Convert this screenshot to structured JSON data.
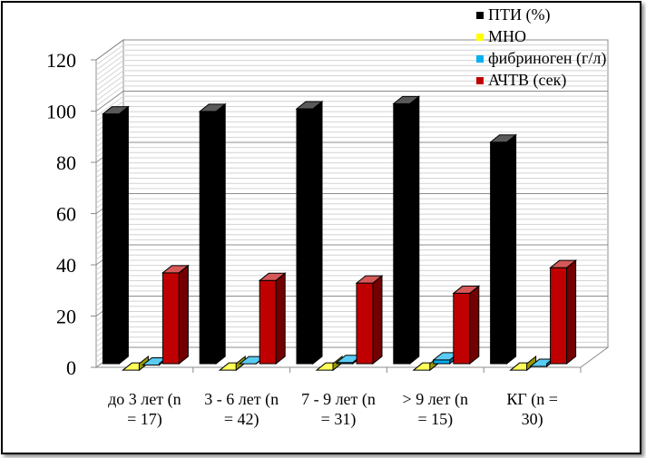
{
  "chart_data": {
    "type": "bar",
    "title": "",
    "xlabel": "",
    "ylabel": "",
    "ylim": [
      0,
      120
    ],
    "yticks": [
      "0",
      "20",
      "40",
      "60",
      "80",
      "100",
      "120"
    ],
    "grid": true,
    "legend_position": "top-right",
    "categories": [
      [
        "до 3 лет (n",
        "= 17)"
      ],
      [
        "3 - 6 лет (n",
        "= 42)"
      ],
      [
        "7 - 9 лет (n",
        "= 31)"
      ],
      [
        "> 9 лет (n",
        "= 15)"
      ],
      [
        "КГ (n =",
        "30)"
      ]
    ],
    "series": [
      {
        "name": "ПТИ (%)",
        "color": "#000000",
        "values": [
          101,
          102,
          103,
          105,
          90
        ]
      },
      {
        "name": "МНО",
        "color": "#ffff00",
        "values": [
          1,
          1,
          1,
          1,
          1
        ]
      },
      {
        "name": "фибриноген (г/л)",
        "color": "#00b0f0",
        "values": [
          3,
          3.5,
          4,
          5,
          2.5
        ]
      },
      {
        "name": "АЧТВ (сек)",
        "color": "#c00000",
        "values": [
          39,
          36,
          35,
          31,
          41
        ]
      }
    ]
  }
}
